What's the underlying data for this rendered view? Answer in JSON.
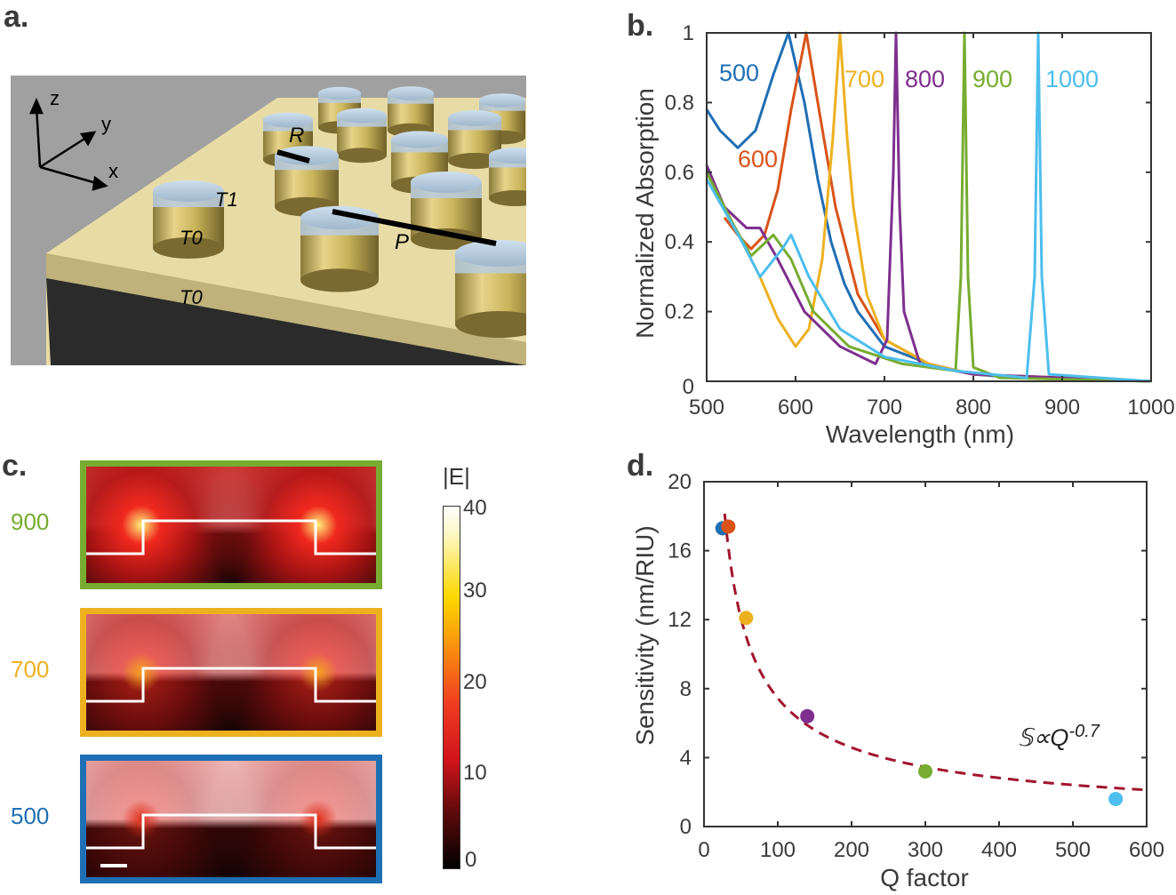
{
  "panel_labels": {
    "a": "a.",
    "b": "b.",
    "c": "c.",
    "d": "d."
  },
  "panel_a": {
    "axes": {
      "z": "z",
      "y": "y",
      "x": "x"
    },
    "labels": {
      "R": "R",
      "P": "P",
      "T1": "T1",
      "T0_top": "T0",
      "T0_bottom": "T0"
    }
  },
  "panel_c": {
    "colorbar_title": "|E|",
    "colorbar_ticks": [
      "40",
      "30",
      "20",
      "10",
      "0"
    ],
    "colorbar_range": [
      0,
      40
    ],
    "maps": [
      {
        "label": "900",
        "color": "#77AC30",
        "intensity": 1.0
      },
      {
        "label": "700",
        "color": "#EDB120",
        "intensity": 0.6
      },
      {
        "label": "500",
        "color": "#1F6FB5",
        "intensity": 0.35
      }
    ]
  },
  "chart_data": [
    {
      "type": "line",
      "panel": "b",
      "xlabel": "Wavelength (nm)",
      "ylabel": "Normalized Absorption",
      "xlim": [
        500,
        1000
      ],
      "ylim": [
        0,
        1
      ],
      "xticks": [
        "500",
        "600",
        "700",
        "800",
        "900",
        "1000"
      ],
      "yticks": [
        "0",
        "0.2",
        "0.4",
        "0.6",
        "0.8",
        "1"
      ],
      "series": [
        {
          "name": "500",
          "color": "#1F6FB5",
          "x": [
            500,
            515,
            535,
            555,
            575,
            592,
            610,
            625,
            640,
            655,
            670,
            700,
            750,
            800,
            850,
            1000
          ],
          "y": [
            0.78,
            0.72,
            0.67,
            0.72,
            0.88,
            1.0,
            0.8,
            0.58,
            0.4,
            0.28,
            0.2,
            0.1,
            0.05,
            0.02,
            0.01,
            0.0
          ]
        },
        {
          "name": "600",
          "color": "#D95319",
          "x": [
            520,
            535,
            550,
            565,
            580,
            595,
            612,
            625,
            645,
            670,
            700,
            750,
            800,
            1000
          ],
          "y": [
            0.47,
            0.42,
            0.38,
            0.42,
            0.55,
            0.78,
            1.0,
            0.8,
            0.5,
            0.25,
            0.12,
            0.05,
            0.02,
            0.0
          ]
        },
        {
          "name": "700",
          "color": "#EDB120",
          "x": [
            500,
            530,
            560,
            580,
            600,
            615,
            630,
            642,
            650,
            658,
            665,
            680,
            700,
            750,
            800,
            1000
          ],
          "y": [
            0.6,
            0.45,
            0.3,
            0.18,
            0.1,
            0.15,
            0.35,
            0.7,
            1.0,
            0.7,
            0.5,
            0.25,
            0.12,
            0.05,
            0.02,
            0.0
          ]
        },
        {
          "name": "800",
          "color": "#7E2F8E",
          "x": [
            500,
            520,
            545,
            560,
            580,
            610,
            650,
            690,
            703,
            710,
            713,
            717,
            722,
            740,
            800,
            1000
          ],
          "y": [
            0.62,
            0.5,
            0.44,
            0.44,
            0.35,
            0.2,
            0.1,
            0.05,
            0.12,
            0.6,
            1.0,
            0.5,
            0.2,
            0.05,
            0.02,
            0.0
          ]
        },
        {
          "name": "900",
          "color": "#77AC30",
          "x": [
            500,
            530,
            550,
            575,
            595,
            620,
            660,
            720,
            780,
            786,
            790,
            794,
            800,
            830,
            1000
          ],
          "y": [
            0.6,
            0.45,
            0.36,
            0.42,
            0.35,
            0.2,
            0.1,
            0.05,
            0.03,
            0.3,
            1.0,
            0.3,
            0.04,
            0.01,
            0.0
          ]
        },
        {
          "name": "1000",
          "color": "#4DBEEE",
          "x": [
            500,
            540,
            560,
            585,
            595,
            615,
            650,
            700,
            780,
            860,
            869,
            873,
            877,
            885,
            1000
          ],
          "y": [
            0.58,
            0.4,
            0.3,
            0.38,
            0.42,
            0.3,
            0.15,
            0.07,
            0.03,
            0.01,
            0.3,
            1.0,
            0.3,
            0.02,
            0.0
          ]
        }
      ]
    },
    {
      "type": "scatter",
      "panel": "d",
      "xlabel": "Q factor",
      "ylabel": "Sensitivity (nm/RIU)",
      "xlim": [
        0,
        600
      ],
      "ylim": [
        0,
        20
      ],
      "xticks": [
        "0",
        "100",
        "200",
        "300",
        "400",
        "500",
        "600"
      ],
      "yticks": [
        "0",
        "4",
        "8",
        "12",
        "16",
        "20"
      ],
      "points": [
        {
          "name": "500",
          "x": 25,
          "y": 17.3,
          "color": "#1F6FB5"
        },
        {
          "name": "600",
          "x": 33,
          "y": 17.4,
          "color": "#D95319"
        },
        {
          "name": "700",
          "x": 57,
          "y": 12.1,
          "color": "#EDB120"
        },
        {
          "name": "800",
          "x": 140,
          "y": 6.4,
          "color": "#7E2F8E"
        },
        {
          "name": "900",
          "x": 300,
          "y": 3.2,
          "color": "#77AC30"
        },
        {
          "name": "1000",
          "x": 558,
          "y": 1.6,
          "color": "#4DBEEE"
        }
      ],
      "fit": {
        "label_main": "𝕊∝Q",
        "label_exp": "-0.7",
        "exponent": -0.7,
        "coefficient": 187,
        "color": "#A2142F"
      }
    }
  ]
}
